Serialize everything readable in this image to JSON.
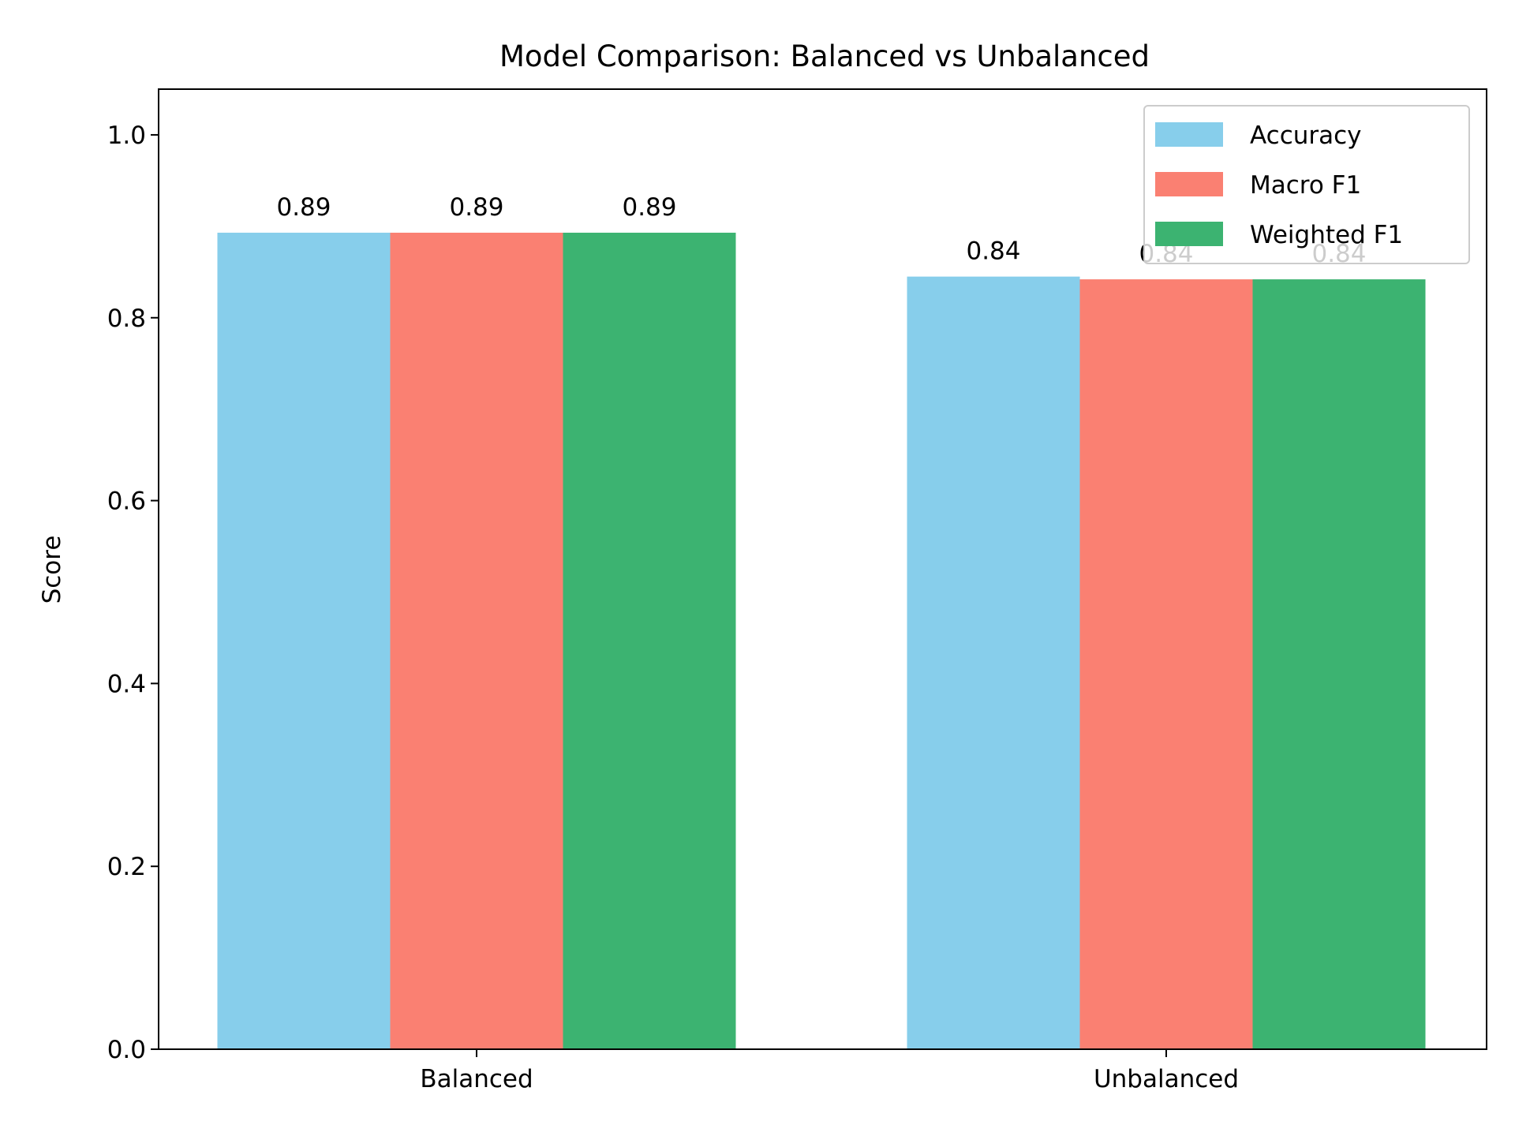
{
  "chart_data": {
    "type": "bar",
    "title": "Model Comparison: Balanced vs Unbalanced",
    "xlabel": "",
    "ylabel": "Score",
    "categories": [
      "Balanced",
      "Unbalanced"
    ],
    "series": [
      {
        "name": "Accuracy",
        "color": "#87CEEB",
        "values": [
          0.893,
          0.845
        ],
        "labels": [
          "0.89",
          "0.84"
        ]
      },
      {
        "name": "Macro F1",
        "color": "#FA8072",
        "values": [
          0.893,
          0.842
        ],
        "labels": [
          "0.89",
          "0.84"
        ]
      },
      {
        "name": "Weighted F1",
        "color": "#3CB371",
        "values": [
          0.893,
          0.842
        ],
        "labels": [
          "0.89",
          "0.84"
        ]
      }
    ],
    "ylim": [
      0,
      1.05
    ],
    "yticks": [
      "0.0",
      "0.2",
      "0.4",
      "0.6",
      "0.8",
      "1.0"
    ],
    "grid": false,
    "legend_position": "top-right"
  }
}
